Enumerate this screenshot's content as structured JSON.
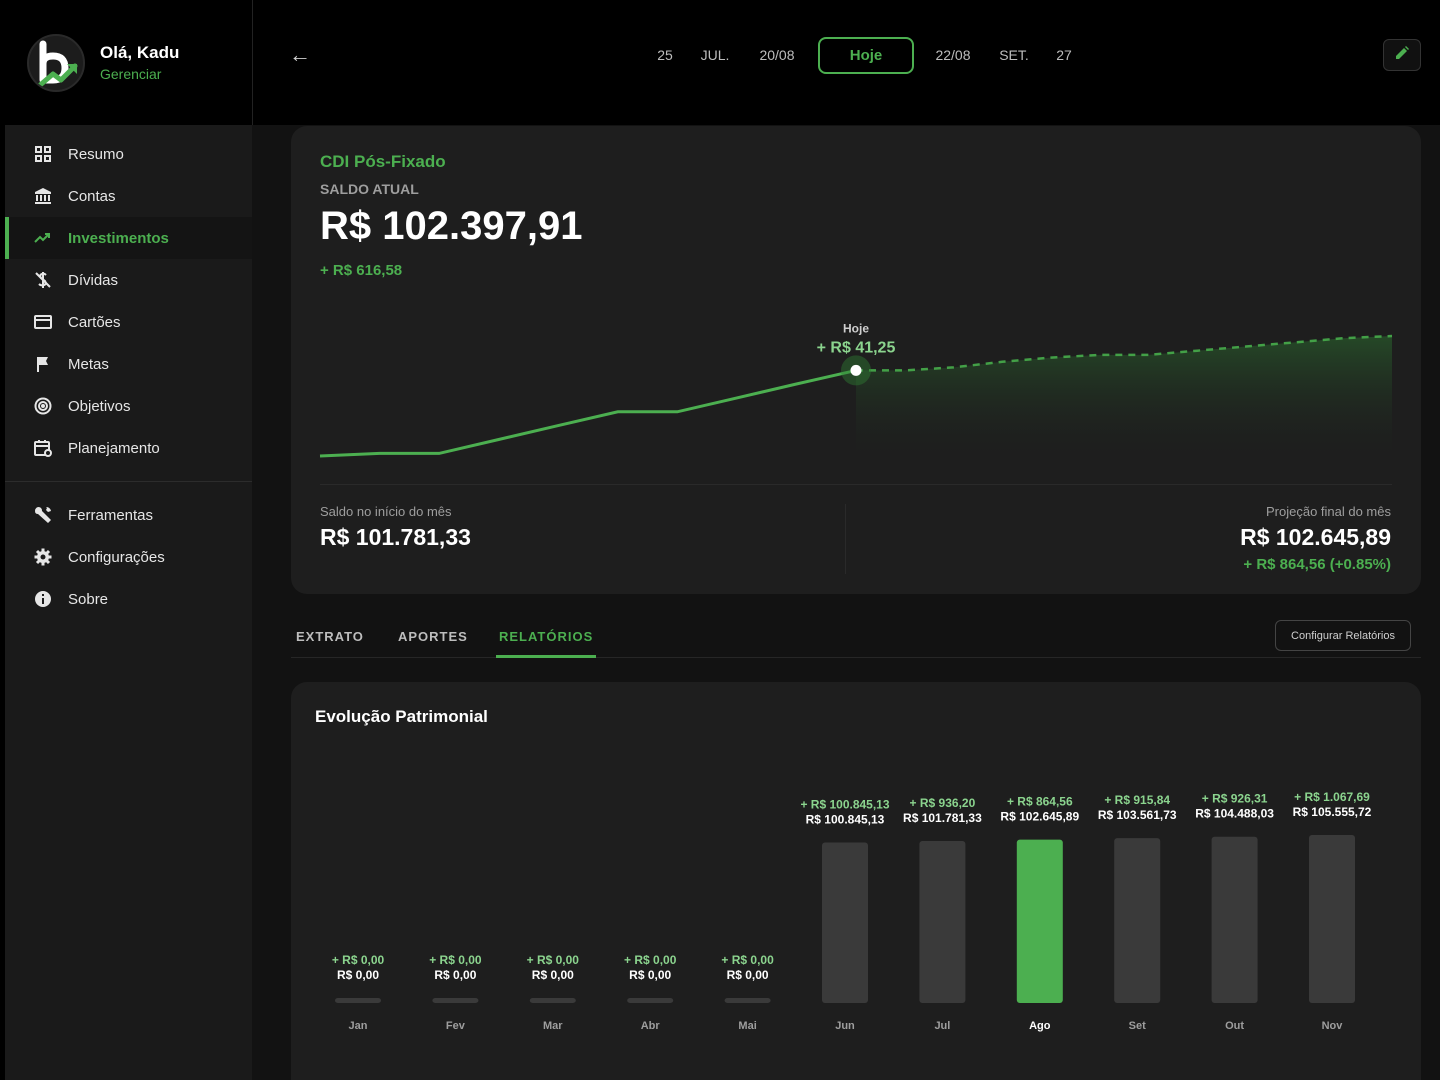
{
  "profile": {
    "greeting": "Olá, Kadu",
    "manage_label": "Gerenciar"
  },
  "nav": {
    "items": [
      {
        "label": "Resumo",
        "icon": "grid-icon",
        "active": false
      },
      {
        "label": "Contas",
        "icon": "bank-icon",
        "active": false
      },
      {
        "label": "Investimentos",
        "icon": "trending-up-icon",
        "active": true
      },
      {
        "label": "Dívidas",
        "icon": "money-off-icon",
        "active": false
      },
      {
        "label": "Cartões",
        "icon": "credit-card-icon",
        "active": false
      },
      {
        "label": "Metas",
        "icon": "flag-icon",
        "active": false
      },
      {
        "label": "Objetivos",
        "icon": "target-icon",
        "active": false
      },
      {
        "label": "Planejamento",
        "icon": "calendar-icon",
        "active": false
      }
    ],
    "secondary": [
      {
        "label": "Ferramentas",
        "icon": "wrench-icon"
      },
      {
        "label": "Configurações",
        "icon": "gear-icon"
      },
      {
        "label": "Sobre",
        "icon": "info-icon"
      }
    ]
  },
  "header": {
    "back_label": "←",
    "dates": [
      "25",
      "JUL.",
      "20/08",
      "Hoje",
      "22/08",
      "SET.",
      "27"
    ],
    "today_index": 3
  },
  "asset": {
    "name": "CDI Pós-Fixado",
    "saldo_label": "SALDO ATUAL",
    "saldo_value": "R$ 102.397,91",
    "saldo_delta": "+ R$ 616,58",
    "today_label": "Hoje",
    "today_delta": "+ R$ 41,25",
    "start_label": "Saldo no início do mês",
    "start_value": "R$ 101.781,33",
    "proj_label": "Projeção final do mês",
    "proj_value": "R$ 102.645,89",
    "proj_delta": "+ R$ 864,56 (+0.85%)"
  },
  "line_series": {
    "actual": [
      101781.33,
      101800,
      101800,
      101900,
      102000,
      102100,
      102100,
      102200,
      102300,
      102397.91
    ],
    "projected": [
      102397.91,
      102397.91,
      102420,
      102460,
      102490,
      102510,
      102510,
      102540,
      102570,
      102600,
      102630,
      102645.89
    ]
  },
  "tabs": {
    "items": [
      "EXTRATO",
      "APORTES",
      "RELATÓRIOS"
    ],
    "active_index": 2,
    "config_button": "Configurar Relatórios"
  },
  "report": {
    "title": "Evolução Patrimonial"
  },
  "colors": {
    "accent": "#4caf50",
    "bar": "#3a3a3a",
    "background": "#121212",
    "card": "#1e1e1e"
  },
  "chart_data": {
    "type": "bar",
    "title": "Evolução Patrimonial",
    "categories": [
      "Jan",
      "Fev",
      "Mar",
      "Abr",
      "Mai",
      "Jun",
      "Jul",
      "Ago",
      "Set",
      "Out",
      "Nov"
    ],
    "values": [
      0,
      0,
      0,
      0,
      0,
      100845.13,
      101781.33,
      102645.89,
      103561.73,
      104488.03,
      105555.72
    ],
    "value_labels": [
      "R$ 0,00",
      "R$ 0,00",
      "R$ 0,00",
      "R$ 0,00",
      "R$ 0,00",
      "R$ 100.845,13",
      "R$ 101.781,33",
      "R$ 102.645,89",
      "R$ 103.561,73",
      "R$ 104.488,03",
      "R$ 105.555,72"
    ],
    "delta_labels": [
      "+ R$ 0,00",
      "+ R$ 0,00",
      "+ R$ 0,00",
      "+ R$ 0,00",
      "+ R$ 0,00",
      "+ R$ 100.845,13",
      "+ R$ 936,20",
      "+ R$ 864,56",
      "+ R$ 915,84",
      "+ R$ 926,31",
      "+ R$ 1.067,69"
    ],
    "highlight_index": 7
  }
}
